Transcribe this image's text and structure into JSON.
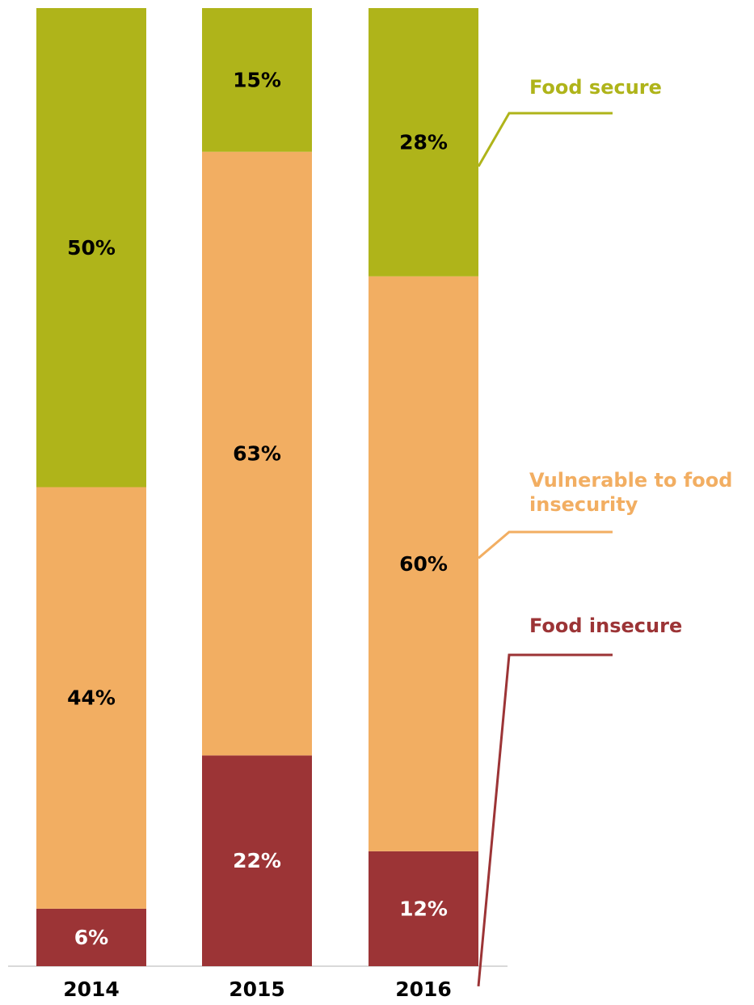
{
  "chart_data": {
    "type": "bar",
    "stacked": true,
    "normalized_percent": true,
    "categories": [
      "2014",
      "2015",
      "2016"
    ],
    "series": [
      {
        "name": "Food insecure",
        "values": [
          6,
          22,
          12
        ],
        "labels": [
          "6%",
          "22%",
          "12%"
        ],
        "color": "#9c3436",
        "label_color": "#ffffff"
      },
      {
        "name": "Vulnerable to food insecurity",
        "values": [
          44,
          63,
          60
        ],
        "labels": [
          "44%",
          "63%",
          "60%"
        ],
        "color": "#f2ae62",
        "label_color": "#000000"
      },
      {
        "name": "Food secure",
        "values": [
          50,
          15,
          28
        ],
        "labels": [
          "50%",
          "15%",
          "28%"
        ],
        "color": "#afb41a",
        "label_color": "#000000"
      }
    ],
    "legend": [
      {
        "series": "Food secure",
        "lines": [
          "Food secure"
        ],
        "color": "#afb41a"
      },
      {
        "series": "Vulnerable to food insecurity",
        "lines": [
          "Vulnerable to food",
          "insecurity"
        ],
        "color": "#f2ae62"
      },
      {
        "series": "Food insecure",
        "lines": [
          "Food insecure"
        ],
        "color": "#9c3436"
      }
    ],
    "ylim": [
      0,
      100
    ],
    "grid": false,
    "legend_placement": "right, callouts beside the 2016 bar",
    "axis_line_color": "#d9d9d9"
  }
}
